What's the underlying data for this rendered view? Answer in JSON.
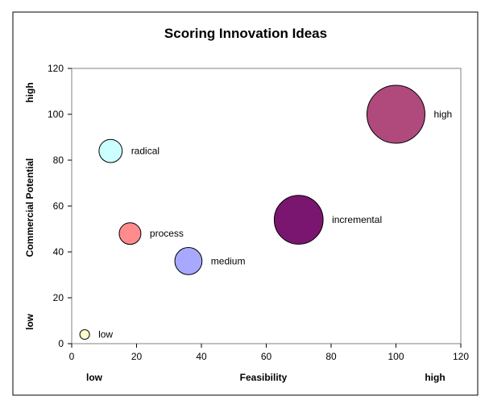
{
  "chart_data": {
    "type": "bubble",
    "title": "Scoring Innovation Ideas",
    "xlabel": "Feasibility",
    "ylabel": "Commercial Potential",
    "x_low_label": "low",
    "x_high_label": "high",
    "y_low_label": "low",
    "y_high_label": "high",
    "xlim": [
      0,
      120
    ],
    "ylim": [
      0,
      120
    ],
    "xticks": [
      0,
      20,
      40,
      60,
      80,
      100,
      120
    ],
    "yticks": [
      0,
      20,
      40,
      60,
      80,
      100,
      120
    ],
    "grid": false,
    "points": [
      {
        "label": "low",
        "x": 4,
        "y": 4,
        "size": 1,
        "color": "#FFFFCC"
      },
      {
        "label": "radical",
        "x": 12,
        "y": 84,
        "size": 16,
        "color": "#CCFFFF"
      },
      {
        "label": "process",
        "x": 18,
        "y": 48,
        "size": 14,
        "color": "#FF8C8C"
      },
      {
        "label": "medium",
        "x": 36,
        "y": 36,
        "size": 22,
        "color": "#A8A8FF"
      },
      {
        "label": "incremental",
        "x": 70,
        "y": 54,
        "size": 71,
        "color": "#7A1670"
      },
      {
        "label": "high",
        "x": 100,
        "y": 100,
        "size": 100,
        "color": "#B04A7C"
      }
    ]
  }
}
